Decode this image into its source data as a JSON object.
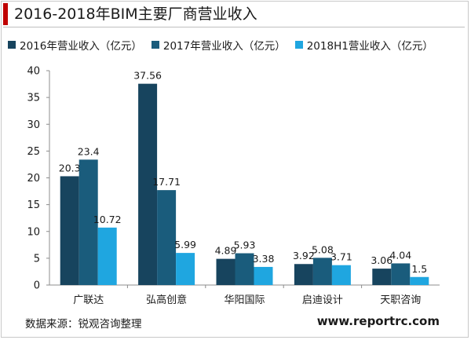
{
  "header": {
    "title": "2016-2018年BIM主要厂商营业收入"
  },
  "footer": {
    "source": "数据来源：锐观咨询整理",
    "website": "www.reportrc.com"
  },
  "colors": {
    "accent": "#c00000",
    "series": [
      "#17445e",
      "#1a5c7c",
      "#1fa6e0"
    ]
  },
  "chart_data": {
    "type": "bar",
    "categories": [
      "广联达",
      "弘高创意",
      "华阳国际",
      "启迪设计",
      "天职咨询"
    ],
    "series": [
      {
        "name": "2016年营业收入（亿元）",
        "values": [
          20.3,
          37.56,
          4.89,
          3.92,
          3.06
        ]
      },
      {
        "name": "2017年营业收入（亿元）",
        "values": [
          23.4,
          17.71,
          5.93,
          5.08,
          4.04
        ]
      },
      {
        "name": "2018H1营业收入（亿元）",
        "values": [
          10.72,
          5.99,
          3.38,
          3.71,
          1.5
        ]
      }
    ],
    "data_labels": [
      [
        "20.3",
        "37.56",
        "4.89",
        "3.92",
        "3.06"
      ],
      [
        "23.4",
        "17.71",
        "5.93",
        "5.08",
        "4.04"
      ],
      [
        "10.72",
        "5.99",
        "3.38",
        "3.71",
        "1.5"
      ]
    ],
    "ylim": [
      0,
      40
    ],
    "yticks": [
      0,
      5,
      10,
      15,
      20,
      25,
      30,
      35,
      40
    ],
    "xlabel": "",
    "ylabel": "",
    "grid": false,
    "legend": "top"
  }
}
